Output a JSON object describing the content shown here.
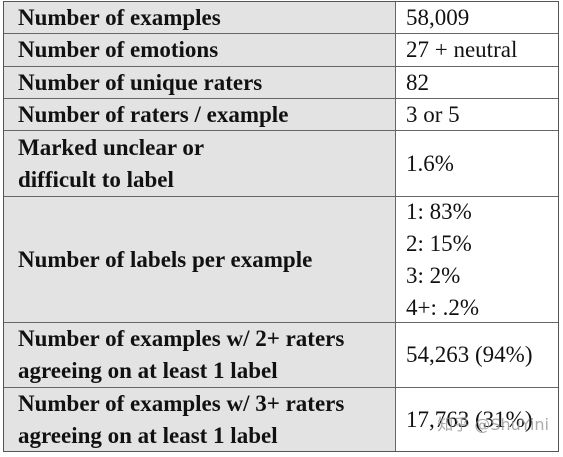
{
  "table": {
    "rows": [
      [
        [
          "Number of examples"
        ],
        [
          "58,009"
        ]
      ],
      [
        [
          "Number of emotions"
        ],
        [
          "27 + neutral"
        ]
      ],
      [
        [
          "Number of unique raters"
        ],
        [
          "82"
        ]
      ],
      [
        [
          "Number of raters / example"
        ],
        [
          "3 or 5"
        ]
      ],
      [
        [
          "Marked unclear or",
          "difficult to label"
        ],
        [
          "1.6%"
        ]
      ],
      [
        [
          "Number of labels per example"
        ],
        [
          "1: 83%",
          "2: 15%",
          "3: 2%",
          "4+: .2%"
        ]
      ],
      [
        [
          "Number of examples w/ 2+ raters",
          "agreeing on at least 1 label"
        ],
        [
          "54,263 (94%)"
        ]
      ],
      [
        [
          "Number of examples w/ 3+ raters",
          "agreeing on at least 1 label"
        ],
        [
          "17,763 (31%)"
        ]
      ]
    ]
  },
  "watermark": "知乎 @ShuYini"
}
